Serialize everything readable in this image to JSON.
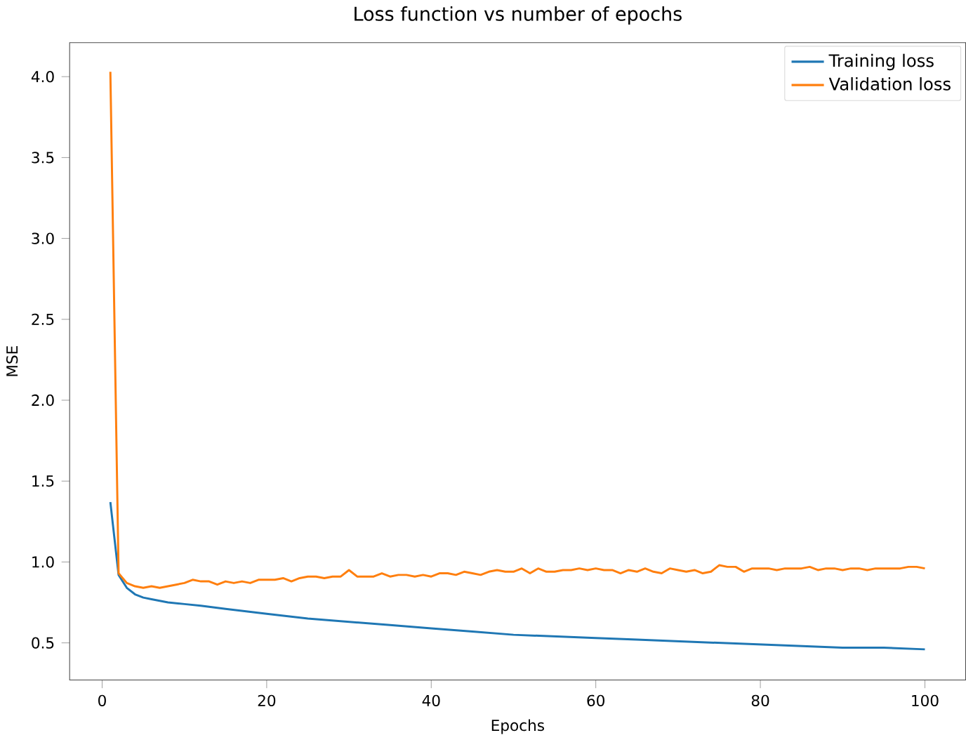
{
  "chart_data": {
    "type": "line",
    "title": "Loss function vs number of epochs",
    "xlabel": "Epochs",
    "ylabel": "MSE",
    "xlim": [
      -3.95,
      104.95
    ],
    "ylim": [
      0.27,
      4.21
    ],
    "xticks": [
      0,
      20,
      40,
      60,
      80,
      100
    ],
    "yticks": [
      {
        "value": 0.5,
        "label": "0.5"
      },
      {
        "value": 1.0,
        "label": "1.0"
      },
      {
        "value": 1.5,
        "label": "1.5"
      },
      {
        "value": 2.0,
        "label": "2.0"
      },
      {
        "value": 2.5,
        "label": "2.5"
      },
      {
        "value": 3.0,
        "label": "3.0"
      },
      {
        "value": 3.5,
        "label": "3.5"
      },
      {
        "value": 4.0,
        "label": "4.0"
      }
    ],
    "legend": "top right",
    "grid": false,
    "series": [
      {
        "name": "Training loss",
        "color": "#1f77b4",
        "x": [
          1,
          2,
          3,
          4,
          5,
          6,
          8,
          10,
          12,
          15,
          20,
          25,
          30,
          35,
          40,
          45,
          50,
          55,
          60,
          65,
          70,
          75,
          80,
          85,
          90,
          95,
          100
        ],
        "values": [
          1.37,
          0.92,
          0.84,
          0.8,
          0.78,
          0.77,
          0.75,
          0.74,
          0.73,
          0.71,
          0.68,
          0.65,
          0.63,
          0.61,
          0.59,
          0.57,
          0.55,
          0.54,
          0.53,
          0.52,
          0.51,
          0.5,
          0.49,
          0.48,
          0.47,
          0.47,
          0.46
        ]
      },
      {
        "name": "Validation loss",
        "color": "#ff7f0e",
        "x": [
          1,
          2,
          3,
          4,
          5,
          6,
          7,
          8,
          9,
          10,
          11,
          12,
          13,
          14,
          15,
          16,
          17,
          18,
          19,
          20,
          21,
          22,
          23,
          24,
          25,
          26,
          27,
          28,
          29,
          30,
          31,
          32,
          33,
          34,
          35,
          36,
          37,
          38,
          39,
          40,
          41,
          42,
          43,
          44,
          45,
          46,
          47,
          48,
          49,
          50,
          51,
          52,
          53,
          54,
          55,
          56,
          57,
          58,
          59,
          60,
          61,
          62,
          63,
          64,
          65,
          66,
          67,
          68,
          69,
          70,
          71,
          72,
          73,
          74,
          75,
          76,
          77,
          78,
          79,
          80,
          81,
          82,
          83,
          84,
          85,
          86,
          87,
          88,
          89,
          90,
          91,
          92,
          93,
          94,
          95,
          96,
          97,
          98,
          99,
          100
        ],
        "values": [
          4.03,
          0.93,
          0.87,
          0.85,
          0.84,
          0.85,
          0.84,
          0.85,
          0.86,
          0.87,
          0.89,
          0.88,
          0.88,
          0.86,
          0.88,
          0.87,
          0.88,
          0.87,
          0.89,
          0.89,
          0.89,
          0.9,
          0.88,
          0.9,
          0.91,
          0.91,
          0.9,
          0.91,
          0.91,
          0.95,
          0.91,
          0.91,
          0.91,
          0.93,
          0.91,
          0.92,
          0.92,
          0.91,
          0.92,
          0.91,
          0.93,
          0.93,
          0.92,
          0.94,
          0.93,
          0.92,
          0.94,
          0.95,
          0.94,
          0.94,
          0.96,
          0.93,
          0.96,
          0.94,
          0.94,
          0.95,
          0.95,
          0.96,
          0.95,
          0.96,
          0.95,
          0.95,
          0.93,
          0.95,
          0.94,
          0.96,
          0.94,
          0.93,
          0.96,
          0.95,
          0.94,
          0.95,
          0.93,
          0.94,
          0.98,
          0.97,
          0.97,
          0.94,
          0.96,
          0.96,
          0.96,
          0.95,
          0.96,
          0.96,
          0.96,
          0.97,
          0.95,
          0.96,
          0.96,
          0.95,
          0.96,
          0.96,
          0.95,
          0.96,
          0.96,
          0.96,
          0.96,
          0.97,
          0.97,
          0.96
        ]
      }
    ]
  }
}
